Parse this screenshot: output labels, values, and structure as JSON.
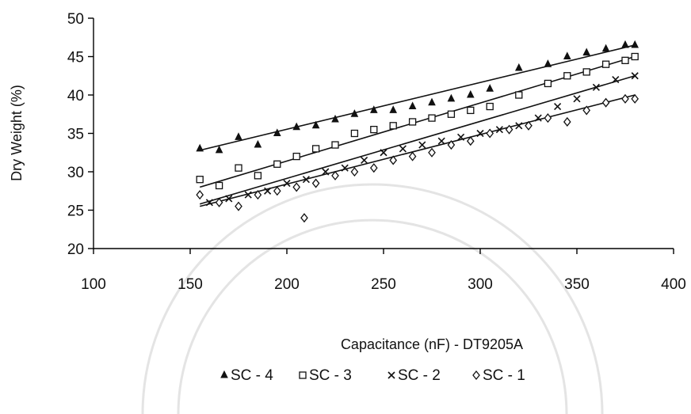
{
  "chart_data": {
    "type": "scatter",
    "title": "",
    "xlabel": "Capacitance (nF) - DT9205A",
    "ylabel": "Dry Weight (%)",
    "xlim": [
      100,
      400
    ],
    "ylim": [
      20,
      50
    ],
    "x_ticks": [
      "100",
      "150",
      "200",
      "250",
      "300",
      "350",
      "400"
    ],
    "y_ticks": [
      "20",
      "25",
      "30",
      "35",
      "40",
      "45",
      "50"
    ],
    "grid": false,
    "legend_position": "bottom",
    "legend": [
      "SC - 4",
      "SC - 3",
      "SC - 2",
      "SC - 1"
    ],
    "series": [
      {
        "name": "SC - 4",
        "marker": "triangle",
        "x": [
          155,
          165,
          175,
          185,
          195,
          205,
          215,
          225,
          235,
          245,
          255,
          265,
          275,
          285,
          295,
          305,
          320,
          335,
          345,
          355,
          365,
          375,
          380
        ],
        "y": [
          33.0,
          32.8,
          34.5,
          33.5,
          35.0,
          35.8,
          36.0,
          36.8,
          37.5,
          38.0,
          38.0,
          38.5,
          39.0,
          39.5,
          40.0,
          40.8,
          43.5,
          44.0,
          45.0,
          45.5,
          46.0,
          46.5,
          46.5
        ],
        "trend": [
          [
            155,
            32.8
          ],
          [
            380,
            46.5
          ]
        ]
      },
      {
        "name": "SC - 3",
        "marker": "square",
        "x": [
          155,
          165,
          175,
          185,
          195,
          205,
          215,
          225,
          235,
          245,
          255,
          265,
          275,
          285,
          295,
          305,
          320,
          335,
          345,
          355,
          365,
          375,
          380
        ],
        "y": [
          29.0,
          28.2,
          30.5,
          29.5,
          31.0,
          32.0,
          33.0,
          33.5,
          35.0,
          35.5,
          36.0,
          36.5,
          37.0,
          37.5,
          38.0,
          38.5,
          40.0,
          41.5,
          42.5,
          43.0,
          44.0,
          44.5,
          45.0
        ],
        "trend": [
          [
            155,
            28.0
          ],
          [
            380,
            45.0
          ]
        ]
      },
      {
        "name": "SC - 2",
        "marker": "cross",
        "x": [
          160,
          170,
          180,
          190,
          200,
          210,
          220,
          230,
          240,
          250,
          260,
          270,
          280,
          290,
          300,
          310,
          320,
          330,
          340,
          350,
          360,
          370,
          380
        ],
        "y": [
          26.0,
          26.5,
          27.0,
          27.5,
          28.5,
          29.0,
          30.0,
          30.5,
          31.5,
          32.5,
          33.0,
          33.5,
          34.0,
          34.5,
          35.0,
          35.5,
          36.0,
          37.0,
          38.5,
          39.5,
          41.0,
          42.0,
          42.5
        ],
        "trend": [
          [
            155,
            25.8
          ],
          [
            380,
            42.5
          ]
        ]
      },
      {
        "name": "SC - 1",
        "marker": "diamond",
        "x": [
          155,
          165,
          175,
          185,
          195,
          205,
          209,
          215,
          225,
          235,
          245,
          255,
          265,
          275,
          285,
          295,
          305,
          315,
          325,
          335,
          345,
          355,
          365,
          375,
          380
        ],
        "y": [
          27.0,
          26.0,
          25.5,
          27.0,
          27.5,
          28.0,
          24.0,
          28.5,
          29.5,
          30.0,
          30.5,
          31.5,
          32.0,
          32.5,
          33.5,
          34.0,
          35.0,
          35.5,
          36.0,
          37.0,
          36.5,
          38.0,
          39.0,
          39.5,
          39.5
        ],
        "trend": [
          [
            155,
            25.5
          ],
          [
            380,
            40.0
          ]
        ]
      }
    ]
  }
}
